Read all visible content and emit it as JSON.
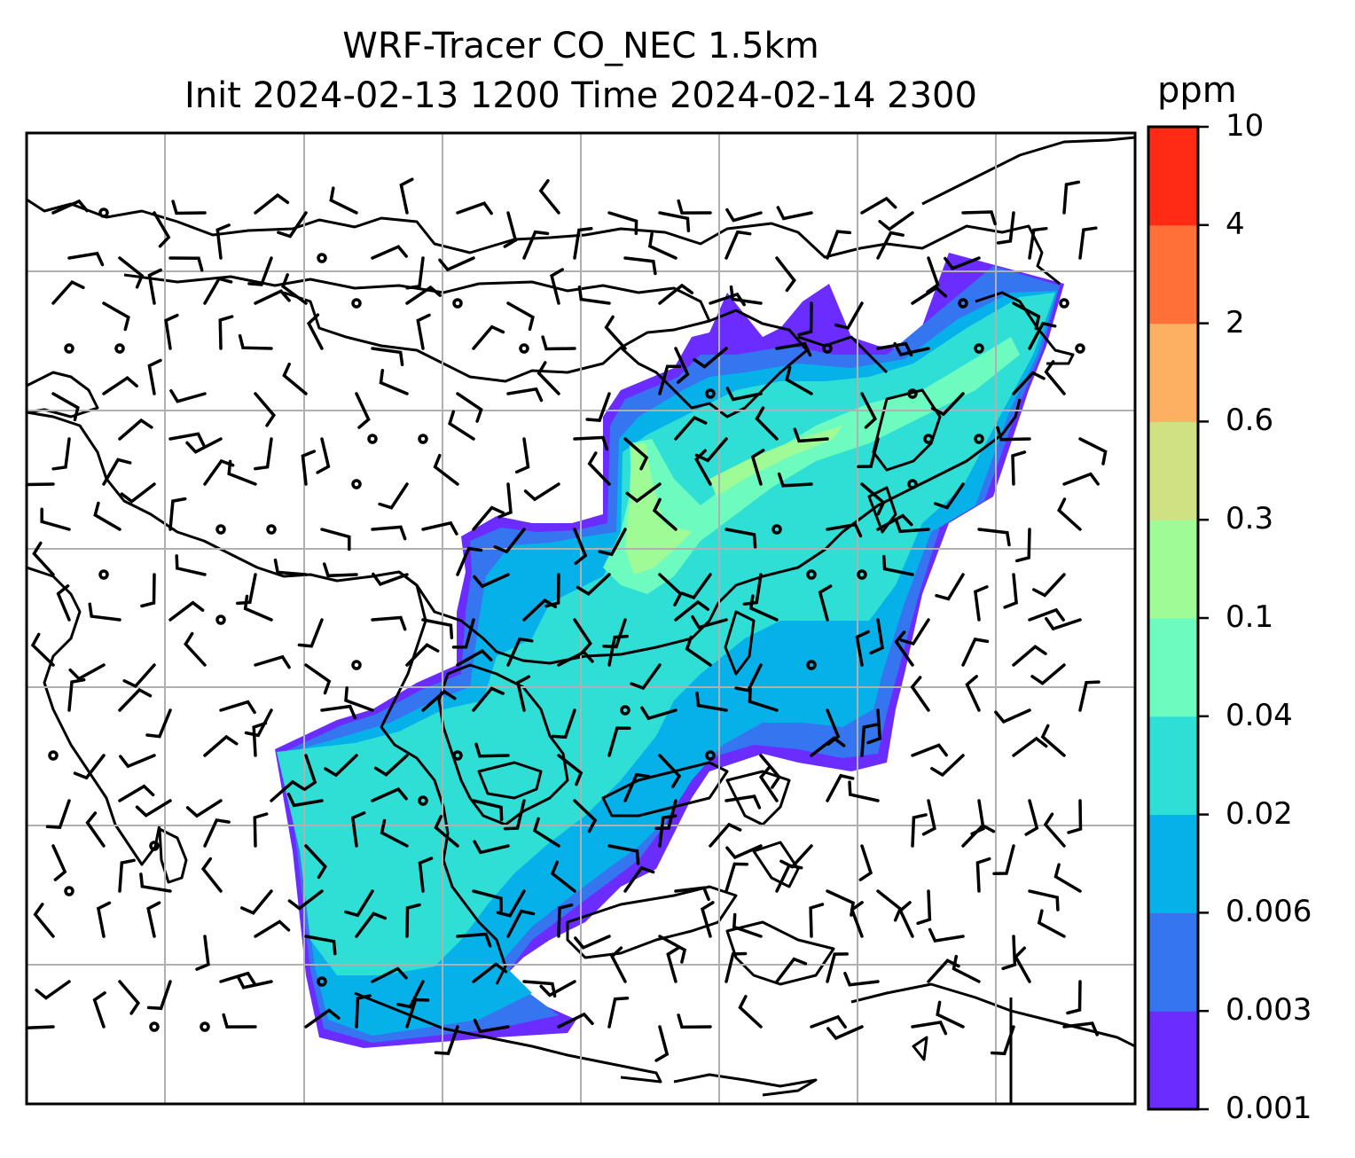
{
  "title": {
    "line1": "WRF-Tracer CO_NEC 1.5km",
    "line2": "Init 2024-02-13 1200 Time 2024-02-14 2300"
  },
  "colorbar": {
    "unit": "ppm",
    "levels": [
      "0.001",
      "0.003",
      "0.006",
      "0.02",
      "0.04",
      "0.1",
      "0.3",
      "0.6",
      "2",
      "4",
      "10"
    ],
    "colors": [
      "#6a2cff",
      "#3575f0",
      "#06b1ea",
      "#2fdfd6",
      "#6efbbf",
      "#9efb95",
      "#d0e183",
      "#fdb062",
      "#ff7138",
      "#ff2b14"
    ]
  },
  "map": {
    "gridlines": true,
    "wind_barbs": true,
    "coastlines": true,
    "grid_color": "#b0b0b0"
  }
}
